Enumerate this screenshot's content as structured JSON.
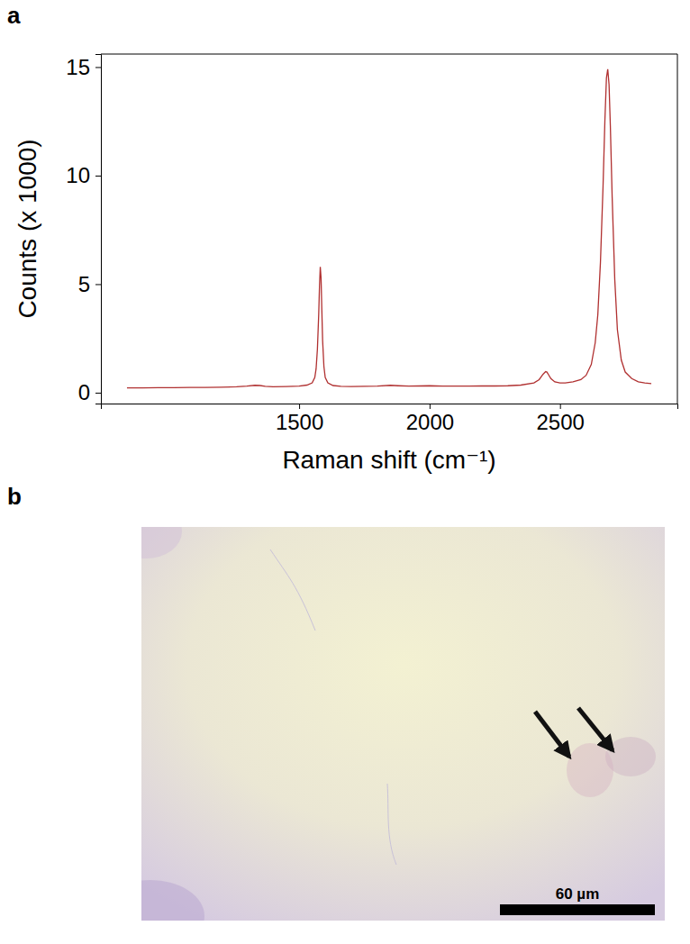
{
  "chart_data": [
    {
      "type": "line",
      "panel": "a",
      "x_label": "Raman shift (cm⁻¹)",
      "y_label": "Counts (x 1000)",
      "color": "#b03030",
      "x": [
        840,
        900,
        960,
        1020,
        1080,
        1140,
        1200,
        1260,
        1300,
        1330,
        1350,
        1370,
        1400,
        1450,
        1500,
        1530,
        1550,
        1560,
        1565,
        1570,
        1575,
        1578,
        1581,
        1584,
        1587,
        1590,
        1595,
        1600,
        1610,
        1630,
        1660,
        1700,
        1750,
        1800,
        1850,
        1880,
        1920,
        1960,
        2000,
        2050,
        2100,
        2150,
        2200,
        2250,
        2300,
        2350,
        2400,
        2420,
        2435,
        2445,
        2450,
        2455,
        2465,
        2480,
        2500,
        2520,
        2550,
        2580,
        2600,
        2620,
        2635,
        2645,
        2655,
        2665,
        2672,
        2678,
        2683,
        2688,
        2693,
        2700,
        2710,
        2720,
        2735,
        2750,
        2775,
        2800,
        2825,
        2850
      ],
      "values": [
        0.22,
        0.22,
        0.23,
        0.23,
        0.24,
        0.24,
        0.25,
        0.27,
        0.3,
        0.34,
        0.33,
        0.29,
        0.27,
        0.28,
        0.3,
        0.35,
        0.45,
        0.7,
        1.1,
        2.0,
        3.6,
        4.9,
        5.8,
        5.3,
        3.8,
        2.4,
        1.2,
        0.7,
        0.45,
        0.33,
        0.29,
        0.28,
        0.29,
        0.3,
        0.34,
        0.32,
        0.3,
        0.31,
        0.32,
        0.3,
        0.3,
        0.3,
        0.31,
        0.31,
        0.32,
        0.35,
        0.45,
        0.6,
        0.85,
        0.97,
        0.95,
        0.85,
        0.65,
        0.5,
        0.45,
        0.45,
        0.5,
        0.6,
        0.8,
        1.3,
        2.3,
        3.6,
        6.0,
        9.5,
        12.5,
        14.5,
        14.9,
        14.2,
        12.3,
        9.0,
        5.2,
        2.9,
        1.5,
        0.95,
        0.65,
        0.5,
        0.45,
        0.42
      ],
      "xlim": [
        740,
        2950
      ],
      "ylim": [
        -0.5,
        15.6
      ],
      "xticks": [
        1500,
        2000,
        2500
      ],
      "yticks": [
        0,
        5,
        10,
        15
      ],
      "grid": false
    },
    {
      "type": "image",
      "panel": "b",
      "scale_bar": "60 µm"
    }
  ]
}
